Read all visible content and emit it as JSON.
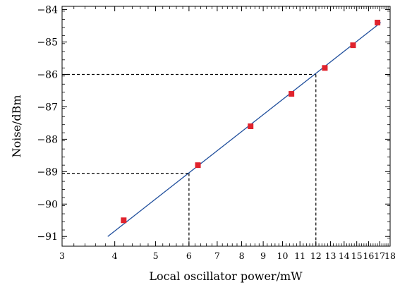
{
  "chart_data": {
    "type": "scatter",
    "title": "",
    "xlabel": "Local oscillator power/mW",
    "ylabel": "Noise/dBm",
    "x_scale": "log",
    "xlim": [
      3,
      18
    ],
    "ylim": [
      -91.3,
      -83.9
    ],
    "x_ticks": [
      3,
      4,
      5,
      6,
      7,
      8,
      9,
      10,
      11,
      12,
      13,
      14,
      15,
      16,
      17,
      18
    ],
    "x_tick_labels": [
      "3",
      "4",
      "5",
      "6",
      "7",
      "8",
      "9",
      "10",
      "11",
      "12",
      "13",
      "14",
      "15",
      "16",
      "17",
      "18"
    ],
    "y_ticks": [
      -91,
      -90,
      -89,
      -88,
      -87,
      -86,
      -85,
      -84
    ],
    "y_tick_labels": [
      "−91",
      "−90",
      "−89",
      "−88",
      "−87",
      "−86",
      "−85",
      "−84"
    ],
    "grid": false,
    "legend": false,
    "series": [
      {
        "type": "scatter",
        "marker": "square",
        "color": "#e0232d",
        "points": [
          {
            "x": 4.2,
            "y": -90.5
          },
          {
            "x": 6.3,
            "y": -88.8
          },
          {
            "x": 8.4,
            "y": -87.6
          },
          {
            "x": 10.5,
            "y": -86.6
          },
          {
            "x": 12.6,
            "y": -85.8
          },
          {
            "x": 14.7,
            "y": -85.1
          },
          {
            "x": 16.8,
            "y": -84.4
          }
        ]
      },
      {
        "type": "line",
        "color": "#1f4e9c",
        "points": [
          {
            "x": 3.85,
            "y": -91.0
          },
          {
            "x": 17.1,
            "y": -84.4
          }
        ]
      }
    ],
    "annotations": [
      {
        "type": "dashed-guide",
        "x": 6,
        "y": -89.05
      },
      {
        "type": "dashed-guide",
        "x": 12,
        "y": -86.0
      }
    ]
  }
}
